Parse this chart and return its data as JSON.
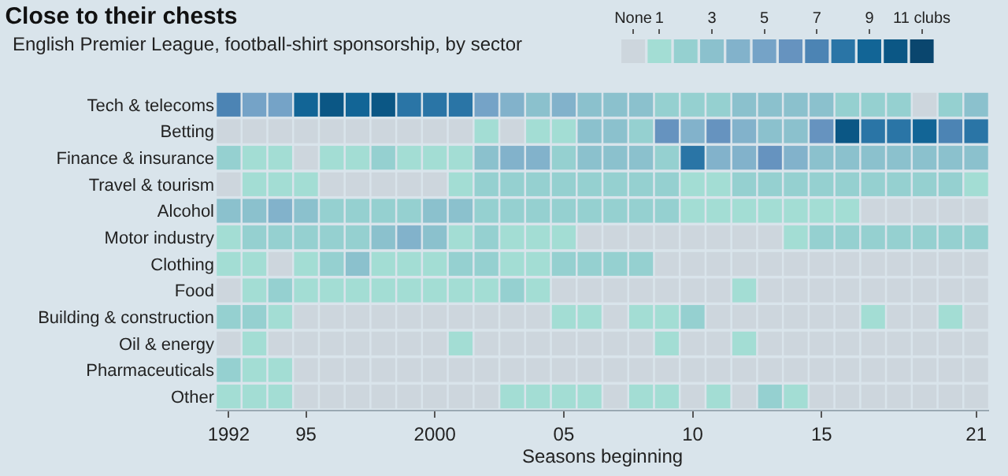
{
  "chart_data": {
    "type": "heatmap",
    "title": "Close to their chests",
    "subtitle": "English Premier League, football-shirt sponsorship, by sector",
    "xlabel": "Seasons beginning",
    "x": [
      1992,
      1993,
      1994,
      1995,
      1996,
      1997,
      1998,
      1999,
      2000,
      2001,
      2002,
      2003,
      2004,
      2005,
      2006,
      2007,
      2008,
      2009,
      2010,
      2011,
      2012,
      2013,
      2014,
      2015,
      2016,
      2017,
      2018,
      2019,
      2020,
      2021
    ],
    "xlim": [
      1991.5,
      2021.5
    ],
    "xticks": [
      1992,
      {
        "value": 1995,
        "label": "95"
      },
      2000,
      {
        "value": 2005,
        "label": "05"
      },
      {
        "value": 2010,
        "label": "10"
      },
      {
        "value": 2015,
        "label": "15"
      },
      {
        "value": 2021,
        "label": "21"
      }
    ],
    "y_categories": [
      "Tech & telecoms",
      "Betting",
      "Finance & insurance",
      "Travel & tourism",
      "Alcohol",
      "Motor industry",
      "Clothing",
      "Food",
      "Building & construction",
      "Oil & energy",
      "Pharmaceuticals",
      "Other"
    ],
    "cells": [
      [
        7,
        5,
        5,
        9,
        10,
        9,
        10,
        8,
        8,
        8,
        5,
        4,
        3,
        4,
        3,
        3,
        3,
        2,
        2,
        2,
        3,
        3,
        3,
        3,
        2,
        2,
        2,
        0,
        2,
        3
      ],
      [
        0,
        0,
        0,
        0,
        0,
        0,
        0,
        0,
        0,
        0,
        1,
        0,
        1,
        1,
        3,
        3,
        2,
        6,
        4,
        6,
        4,
        3,
        3,
        6,
        10,
        8,
        8,
        9,
        7,
        8
      ],
      [
        2,
        1,
        1,
        0,
        1,
        1,
        2,
        1,
        1,
        1,
        3,
        4,
        4,
        2,
        3,
        3,
        3,
        2,
        8,
        4,
        4,
        6,
        4,
        3,
        3,
        3,
        3,
        3,
        3,
        3
      ],
      [
        0,
        1,
        1,
        1,
        0,
        0,
        0,
        0,
        0,
        1,
        2,
        2,
        2,
        2,
        2,
        2,
        2,
        2,
        1,
        1,
        2,
        2,
        2,
        2,
        2,
        2,
        2,
        2,
        2,
        1
      ],
      [
        3,
        3,
        4,
        3,
        2,
        2,
        2,
        2,
        3,
        3,
        2,
        2,
        2,
        2,
        2,
        2,
        2,
        2,
        1,
        1,
        1,
        1,
        1,
        1,
        1,
        0,
        0,
        0,
        0,
        0
      ],
      [
        1,
        2,
        2,
        2,
        2,
        2,
        3,
        4,
        3,
        1,
        2,
        1,
        1,
        1,
        0,
        0,
        0,
        0,
        0,
        0,
        0,
        0,
        1,
        2,
        2,
        2,
        2,
        2,
        2,
        2
      ],
      [
        1,
        1,
        0,
        1,
        2,
        3,
        1,
        1,
        1,
        2,
        2,
        1,
        1,
        2,
        2,
        2,
        2,
        0,
        0,
        0,
        0,
        0,
        0,
        0,
        0,
        0,
        0,
        0,
        0,
        0
      ],
      [
        0,
        1,
        2,
        1,
        1,
        1,
        1,
        1,
        1,
        1,
        1,
        2,
        1,
        0,
        0,
        0,
        0,
        0,
        0,
        0,
        1,
        0,
        0,
        0,
        0,
        0,
        0,
        0,
        0,
        0
      ],
      [
        2,
        2,
        1,
        0,
        0,
        0,
        0,
        0,
        0,
        0,
        0,
        0,
        0,
        1,
        1,
        0,
        1,
        1,
        2,
        0,
        0,
        0,
        0,
        0,
        0,
        1,
        0,
        0,
        1,
        0
      ],
      [
        0,
        1,
        0,
        0,
        0,
        0,
        0,
        0,
        0,
        1,
        0,
        0,
        0,
        0,
        0,
        0,
        0,
        1,
        0,
        0,
        1,
        0,
        0,
        0,
        0,
        0,
        0,
        0,
        0,
        0
      ],
      [
        2,
        1,
        1,
        0,
        0,
        0,
        0,
        0,
        0,
        0,
        0,
        0,
        0,
        0,
        0,
        0,
        0,
        0,
        0,
        0,
        0,
        0,
        0,
        0,
        0,
        0,
        0,
        0,
        0,
        0
      ],
      [
        1,
        1,
        1,
        0,
        0,
        0,
        0,
        0,
        0,
        0,
        0,
        1,
        1,
        1,
        1,
        0,
        1,
        1,
        0,
        1,
        0,
        2,
        1,
        0,
        0,
        0,
        0,
        0,
        0,
        0
      ]
    ],
    "clim": [
      -0.5,
      11.5
    ],
    "cticks": [
      {
        "value": 0,
        "label": "None"
      },
      1,
      3,
      5,
      7,
      9,
      {
        "value": 11,
        "label": "11 clubs"
      }
    ],
    "colors": [
      "#cdd6dd",
      "#a3ddd4",
      "#95d0d0",
      "#8bc1cd",
      "#82b2cb",
      "#75a3c7",
      "#6693bf",
      "#4c84b4",
      "#2a75a6",
      "#126596",
      "#0b5785",
      "#0a466e"
    ]
  }
}
